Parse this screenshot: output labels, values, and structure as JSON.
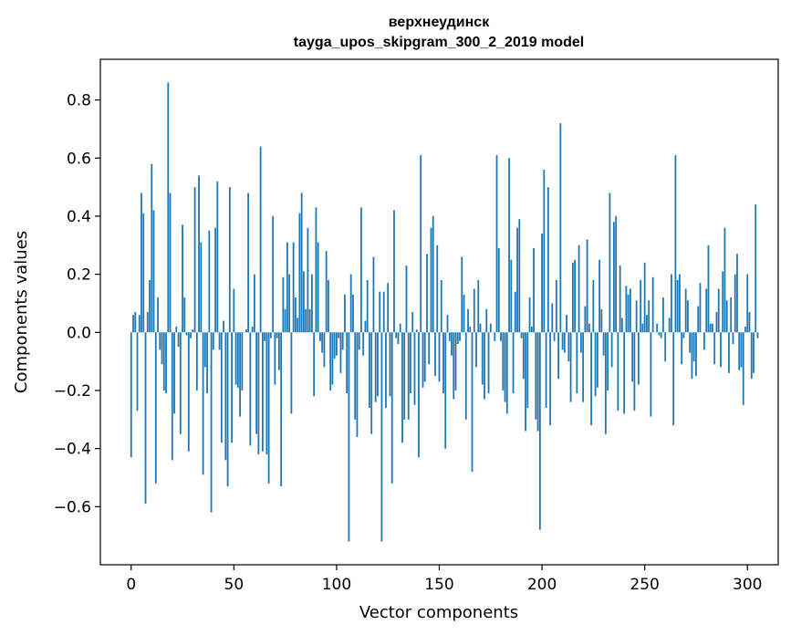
{
  "chart_data": {
    "type": "bar",
    "title_line1": "верхнеудинск",
    "title_line2": "tayga_upos_skipgram_300_2_2019 model",
    "xlabel": "Vector components",
    "ylabel": "Components values",
    "xlim": [
      -15,
      315
    ],
    "ylim": [
      -0.8,
      0.94
    ],
    "xticks": [
      0,
      50,
      100,
      150,
      200,
      250,
      300
    ],
    "xtick_labels": [
      "0",
      "50",
      "100",
      "150",
      "200",
      "250",
      "300"
    ],
    "yticks": [
      -0.6,
      -0.4,
      -0.2,
      0.0,
      0.2,
      0.4,
      0.6,
      0.8
    ],
    "ytick_labels": [
      "−0.6",
      "−0.4",
      "−0.2",
      "0.0",
      "0.2",
      "0.4",
      "0.6",
      "0.8"
    ],
    "bar_color": "#1f77b4",
    "grid": false,
    "values": [
      -0.43,
      0.06,
      0.07,
      -0.27,
      0.06,
      0.48,
      0.41,
      -0.59,
      0.07,
      0.18,
      0.58,
      0.42,
      -0.52,
      0.12,
      -0.06,
      -0.11,
      -0.2,
      -0.21,
      0.86,
      0.48,
      -0.44,
      -0.28,
      0.02,
      -0.05,
      -0.35,
      0.37,
      0.12,
      -0.01,
      -0.41,
      -0.02,
      0.01,
      0.5,
      -0.2,
      0.54,
      0.31,
      -0.49,
      -0.12,
      -0.21,
      0.35,
      -0.62,
      -0.06,
      0.36,
      0.52,
      -0.06,
      -0.38,
      0.04,
      -0.44,
      -0.53,
      0.5,
      -0.38,
      0.15,
      -0.18,
      -0.19,
      -0.29,
      -0.2,
      0.0,
      0.01,
      0.48,
      -0.39,
      0.02,
      0.2,
      -0.35,
      -0.42,
      0.64,
      -0.41,
      -0.03,
      -0.42,
      -0.52,
      -0.02,
      0.4,
      -0.18,
      -0.02,
      -0.13,
      -0.53,
      0.19,
      0.08,
      0.31,
      0.2,
      -0.28,
      0.31,
      0.12,
      0.05,
      0.41,
      0.48,
      0.21,
      0.08,
      0.36,
      0.08,
      0.2,
      -0.22,
      0.43,
      0.31,
      -0.03,
      -0.07,
      -0.12,
      0.28,
      0.18,
      -0.2,
      -0.18,
      -0.09,
      -0.08,
      -0.02,
      -0.14,
      -0.06,
      0.13,
      -0.21,
      -0.72,
      0.2,
      0.13,
      -0.3,
      -0.36,
      -0.06,
      0.43,
      -0.08,
      0.04,
      0.18,
      -0.26,
      -0.35,
      0.26,
      -0.24,
      -0.22,
      0.14,
      -0.72,
      0.14,
      -0.26,
      0.17,
      -0.22,
      -0.52,
      0.42,
      -0.02,
      -0.04,
      0.03,
      -0.38,
      -0.3,
      0.23,
      -0.3,
      -0.21,
      0.07,
      -0.25,
      0.01,
      -0.43,
      0.61,
      -0.19,
      -0.17,
      0.27,
      -0.11,
      0.36,
      0.4,
      -0.15,
      0.3,
      -0.17,
      0.18,
      -0.21,
      -0.4,
      0.06,
      -0.03,
      -0.08,
      -0.23,
      -0.2,
      -0.04,
      -0.03,
      0.26,
      0.13,
      -0.3,
      0.08,
      0.02,
      -0.48,
      0.15,
      -0.12,
      0.18,
      0.03,
      -0.18,
      -0.23,
      0.08,
      -0.21,
      0.03,
      0.0,
      -0.03,
      0.61,
      0.29,
      -0.03,
      -0.2,
      -0.24,
      -0.28,
      0.6,
      0.25,
      -0.21,
      0.14,
      0.36,
      0.39,
      -0.02,
      -0.16,
      -0.34,
      -0.26,
      0.12,
      0.02,
      0.29,
      -0.3,
      -0.34,
      -0.68,
      0.34,
      0.56,
      -0.26,
      0.5,
      -0.32,
      0.1,
      -0.03,
      0.18,
      -0.16,
      0.72,
      -0.06,
      -0.07,
      0.06,
      -0.1,
      -0.24,
      0.24,
      0.25,
      -0.21,
      0.3,
      -0.07,
      -0.24,
      0.09,
      0.32,
      0.03,
      -0.32,
      0.18,
      -0.22,
      -0.19,
      0.25,
      0.08,
      -0.08,
      -0.35,
      -0.2,
      0.48,
      -0.12,
      0.38,
      0.4,
      -0.27,
      0.23,
      0.05,
      -0.28,
      0.16,
      0.13,
      0.15,
      -0.17,
      -0.27,
      0.11,
      -0.18,
      0.18,
      0.03,
      0.24,
      0.06,
      0.11,
      -0.29,
      0.19,
      0.0,
      0.03,
      -0.01,
      -0.02,
      0.12,
      -0.1,
      0.0,
      0.05,
      0.2,
      -0.32,
      0.61,
      0.18,
      0.2,
      -0.11,
      -0.02,
      0.15,
      0.11,
      -0.07,
      -0.16,
      -0.1,
      -0.15,
      0.09,
      0.17,
      0.0,
      -0.06,
      0.15,
      0.3,
      0.03,
      0.03,
      -0.11,
      0.07,
      0.15,
      -0.12,
      0.21,
      0.36,
      0.11,
      -0.14,
      0.12,
      -0.04,
      0.2,
      0.27,
      -0.13,
      -0.12,
      -0.25,
      0.02,
      0.2,
      0.07,
      -0.16,
      -0.14,
      0.44,
      -0.02
    ]
  }
}
